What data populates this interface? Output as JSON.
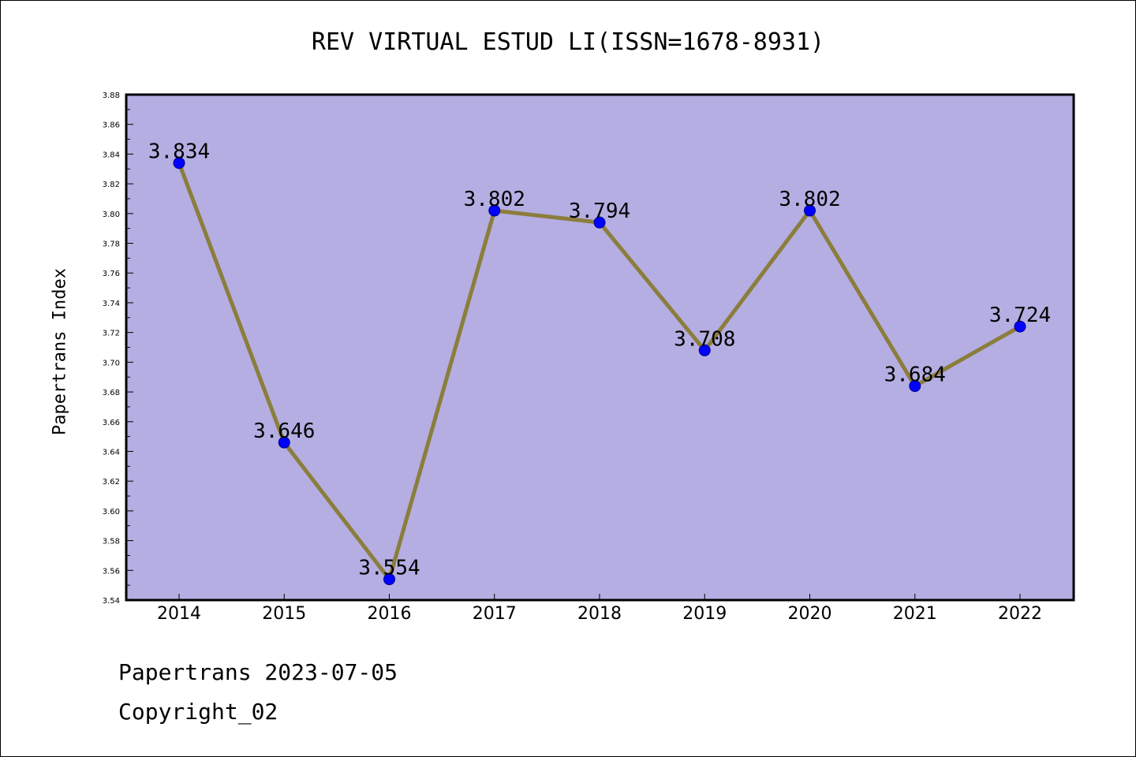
{
  "chart_data": {
    "type": "line",
    "title": "REV VIRTUAL ESTUD LI(ISSN=1678-8931)",
    "xlabel": "",
    "ylabel": "Papertrans Index",
    "categories": [
      "2014",
      "2015",
      "2016",
      "2017",
      "2018",
      "2019",
      "2020",
      "2021",
      "2022"
    ],
    "values": [
      3.834,
      3.646,
      3.554,
      3.802,
      3.794,
      3.708,
      3.802,
      3.684,
      3.724
    ],
    "data_labels": [
      "3.834",
      "3.646",
      "3.554",
      "3.802",
      "3.794",
      "3.708",
      "3.802",
      "3.684",
      "3.724"
    ],
    "ylim": [
      3.54,
      3.88
    ],
    "yticks": [
      "3.54",
      "3.56",
      "3.58",
      "3.60",
      "3.62",
      "3.64",
      "3.66",
      "3.68",
      "3.70",
      "3.72",
      "3.74",
      "3.76",
      "3.78",
      "3.80",
      "3.82",
      "3.84",
      "3.86",
      "3.88"
    ],
    "grid": false,
    "colors": {
      "plot_background": "#b4aee2",
      "line": "#8b7d3c",
      "marker": "#0000ff"
    }
  },
  "footer": {
    "line1": "Papertrans 2023-07-05",
    "line2": "Copyright_02"
  }
}
